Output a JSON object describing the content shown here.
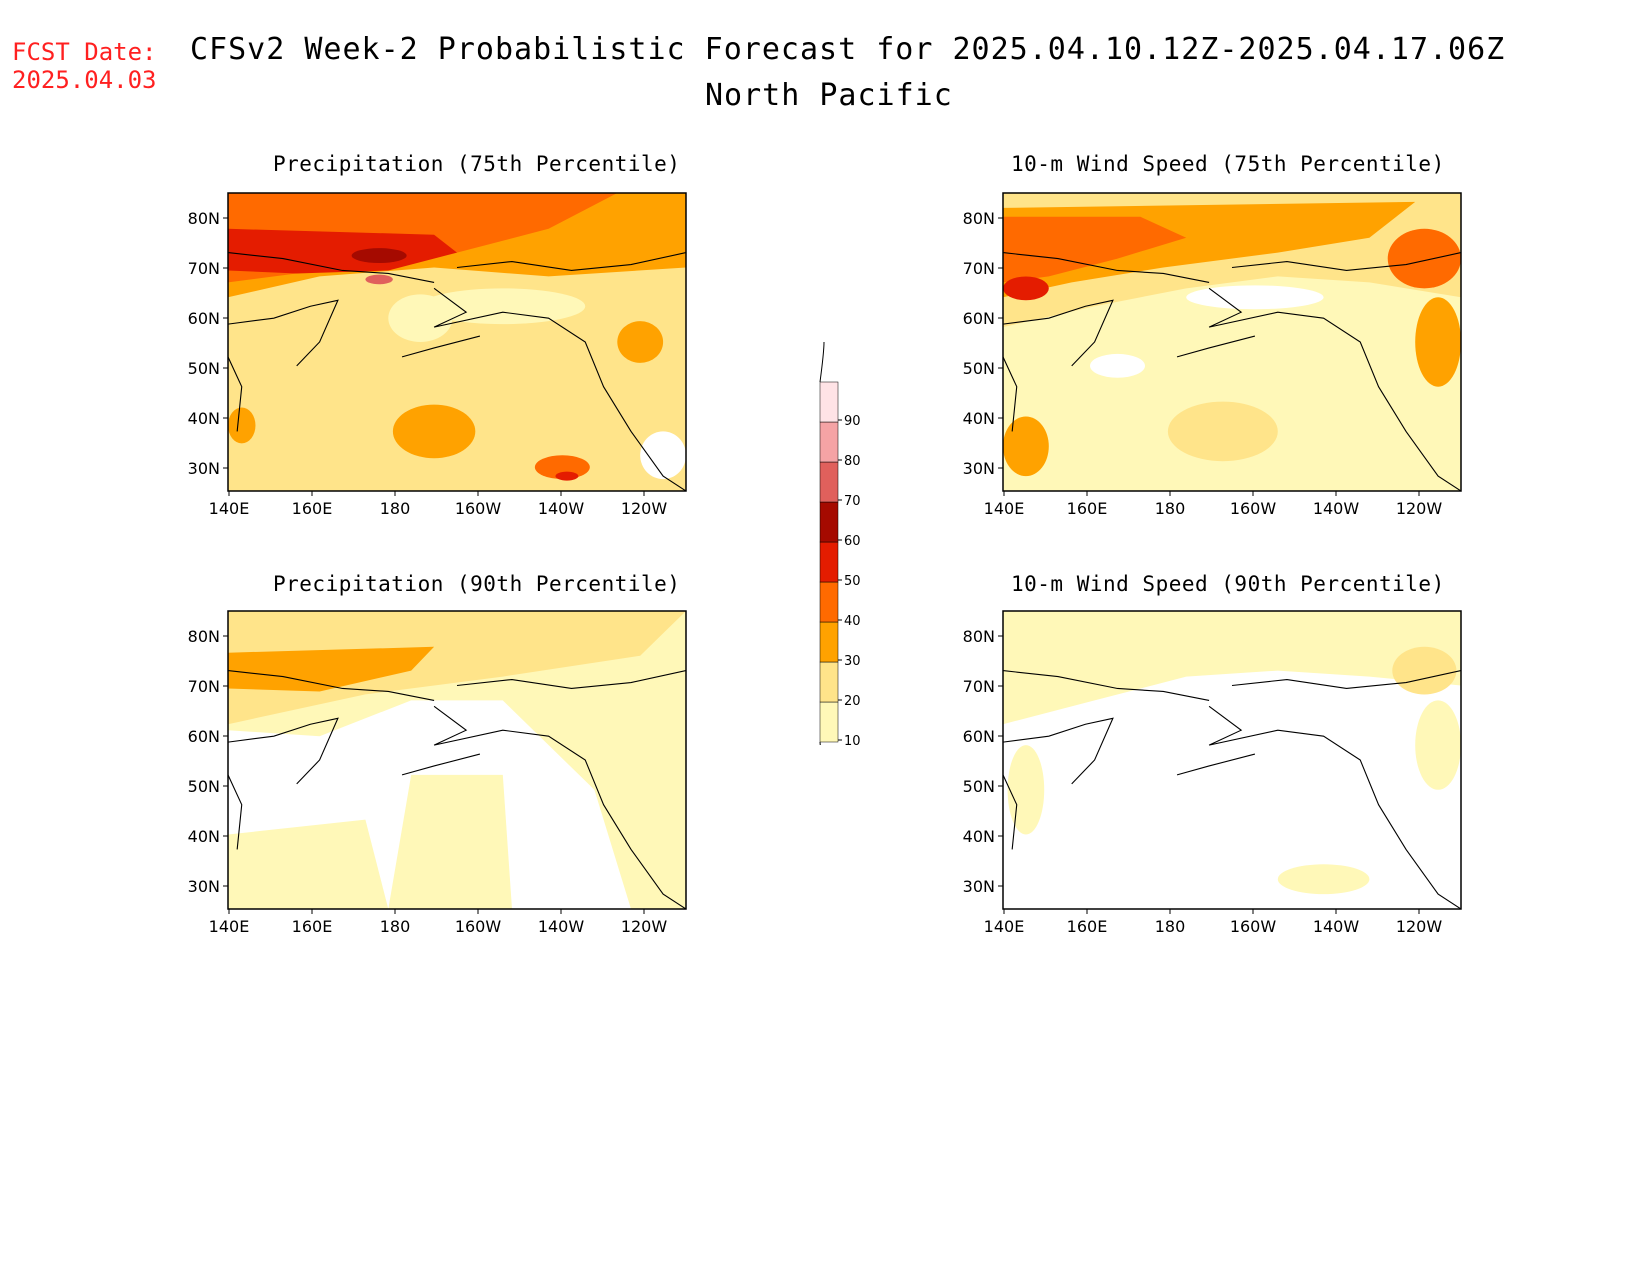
{
  "header": {
    "fcst_label": "FCST Date:",
    "fcst_date": "2025.04.03",
    "title": "CFSv2 Week-2 Probabilistic Forecast for 2025.04.10.12Z-2025.04.17.06Z",
    "subtitle": "North Pacific"
  },
  "panels": [
    {
      "title": "Precipitation (75th Percentile)"
    },
    {
      "title": "10-m Wind Speed (75th Percentile)"
    },
    {
      "title": "Precipitation (90th Percentile)"
    },
    {
      "title": "10-m Wind Speed (90th Percentile)"
    }
  ],
  "axes": {
    "lat_ticks": [
      "80N",
      "70N",
      "60N",
      "50N",
      "40N",
      "30N"
    ],
    "lon_ticks": [
      "140E",
      "160E",
      "180",
      "160W",
      "140W",
      "120W"
    ]
  },
  "colorbar": {
    "levels": [
      "10",
      "20",
      "30",
      "40",
      "50",
      "60",
      "70",
      "80",
      "90"
    ],
    "colors": [
      "#fff8b8",
      "#ffe48a",
      "#ffa200",
      "#ff6a00",
      "#e41c00",
      "#a50a00",
      "#e0605c",
      "#f5a3a5",
      "#ffe3e6"
    ]
  },
  "colors": {
    "fcst_text": "#ff2020",
    "coast": "#000000"
  }
}
